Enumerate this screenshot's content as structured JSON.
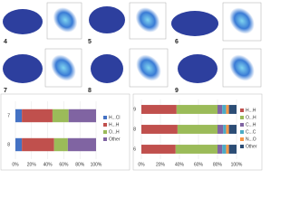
{
  "panel_labels": [
    "4",
    "5",
    "6",
    "7",
    "8",
    "9"
  ],
  "chart_data": [
    {
      "type": "bar",
      "orientation": "horizontal",
      "stacked": true,
      "categories": [
        "7",
        "8"
      ],
      "series": [
        {
          "name": "H...Cl",
          "color": "#4472c4",
          "values": [
            8,
            8
          ]
        },
        {
          "name": "H...H",
          "color": "#c0504d",
          "values": [
            38,
            40
          ]
        },
        {
          "name": "O...H",
          "color": "#9bbb59",
          "values": [
            20,
            17
          ]
        },
        {
          "name": "Other",
          "color": "#8064a2",
          "values": [
            34,
            35
          ]
        }
      ],
      "xlim": [
        0,
        100
      ],
      "xticks": [
        {
          "value": 0,
          "label": "0%"
        },
        {
          "value": 20,
          "label": "20%"
        },
        {
          "value": 40,
          "label": "40%"
        },
        {
          "value": 60,
          "label": "60%"
        },
        {
          "value": 80,
          "label": "80%"
        },
        {
          "value": 100,
          "label": "100%"
        }
      ]
    },
    {
      "type": "bar",
      "orientation": "horizontal",
      "stacked": true,
      "categories": [
        "9",
        "8",
        "6"
      ],
      "series": [
        {
          "name": "H...H",
          "color": "#c0504d",
          "values": [
            37,
            38,
            36
          ]
        },
        {
          "name": "O...H",
          "color": "#9bbb59",
          "values": [
            43,
            42,
            44
          ]
        },
        {
          "name": "C...H",
          "color": "#8064a2",
          "values": [
            5,
            6,
            5
          ]
        },
        {
          "name": "C...C",
          "color": "#4bacc6",
          "values": [
            4,
            3,
            4
          ]
        },
        {
          "name": "N...O",
          "color": "#f79646",
          "values": [
            3,
            3,
            3
          ]
        },
        {
          "name": "Other",
          "color": "#2c4d75",
          "values": [
            8,
            8,
            8
          ]
        }
      ],
      "xlim": [
        0,
        100
      ],
      "xticks": [
        {
          "value": 0,
          "label": "0%"
        },
        {
          "value": 20,
          "label": "20%"
        },
        {
          "value": 40,
          "label": "40%"
        },
        {
          "value": 60,
          "label": "60%"
        },
        {
          "value": 80,
          "label": "80%"
        },
        {
          "value": 100,
          "label": "100%"
        }
      ]
    }
  ]
}
